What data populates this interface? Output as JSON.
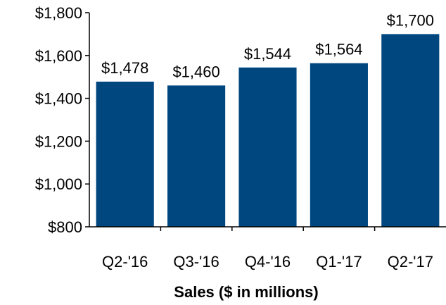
{
  "chart_data": {
    "type": "bar",
    "categories": [
      "Q2-'16",
      "Q3-'16",
      "Q4-'16",
      "Q1-'17",
      "Q2-'17"
    ],
    "values": [
      1478,
      1460,
      1544,
      1564,
      1700
    ],
    "value_labels": [
      "$1,478",
      "$1,460",
      "$1,544",
      "$1,564",
      "$1,700"
    ],
    "title": "",
    "xlabel": "Sales ($ in millions)",
    "ylabel": "",
    "ylim": [
      800,
      1800
    ],
    "yticks": [
      800,
      1000,
      1200,
      1400,
      1600,
      1800
    ],
    "ytick_labels": [
      "$800",
      "$1,000",
      "$1,200",
      "$1,400",
      "$1,600",
      "$1,800"
    ],
    "grid": false,
    "legend": "none",
    "bar_color": "#00467f"
  }
}
